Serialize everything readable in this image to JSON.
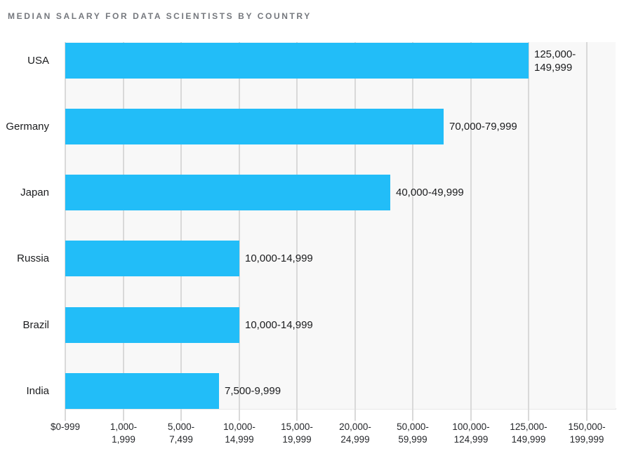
{
  "chart_data": {
    "type": "bar",
    "orientation": "horizontal",
    "title": "MEDIAN SALARY FOR DATA SCIENTISTS BY COUNTRY",
    "categories": [
      "USA",
      "Germany",
      "Japan",
      "Russia",
      "Brazil",
      "India"
    ],
    "values": [
      "125,000-149,999",
      "70,000-79,999",
      "40,000-49,999",
      "10,000-14,999",
      "10,000-14,999",
      "7,500-9,999"
    ],
    "values_display": [
      [
        "125,000-",
        "149,999"
      ],
      [
        "70,000-79,999"
      ],
      [
        "40,000-49,999"
      ],
      [
        "10,000-14,999"
      ],
      [
        "10,000-14,999"
      ],
      [
        "7,500-9,999"
      ]
    ],
    "bar_end_tick_units": [
      8.0,
      6.53,
      5.61,
      3.0,
      3.0,
      2.65
    ],
    "x_tick_labels": [
      "$0-999",
      "1,000-1,999",
      "5,000-7,499",
      "10,000-14,999",
      "15,000-19,999",
      "20,000-24,999",
      "50,000-59,999",
      "100,000-124,999",
      "125,000-149,999",
      "150,000-199,999"
    ],
    "x_ticks": [
      [
        "$0-999"
      ],
      [
        "1,000-",
        "1,999"
      ],
      [
        "5,000-",
        "7,499"
      ],
      [
        "10,000-",
        "14,999"
      ],
      [
        "15,000-",
        "19,999"
      ],
      [
        "20,000-",
        "24,999"
      ],
      [
        "50,000-",
        "59,999"
      ],
      [
        "100,000-",
        "124,999"
      ],
      [
        "125,000-",
        "149,999"
      ],
      [
        "150,000-",
        "199,999"
      ]
    ],
    "layout": {
      "axis_right_tick_units": 9.49,
      "gridlines": "vertical",
      "legend": "none"
    },
    "colors": {
      "bar": "#22bdf8",
      "plot_background": "#f8f8f8",
      "gridline": "#d9d9d9",
      "axis_line": "#e8e8e8",
      "title_text": "#75787e",
      "label_text": "#1b1c1e"
    }
  }
}
